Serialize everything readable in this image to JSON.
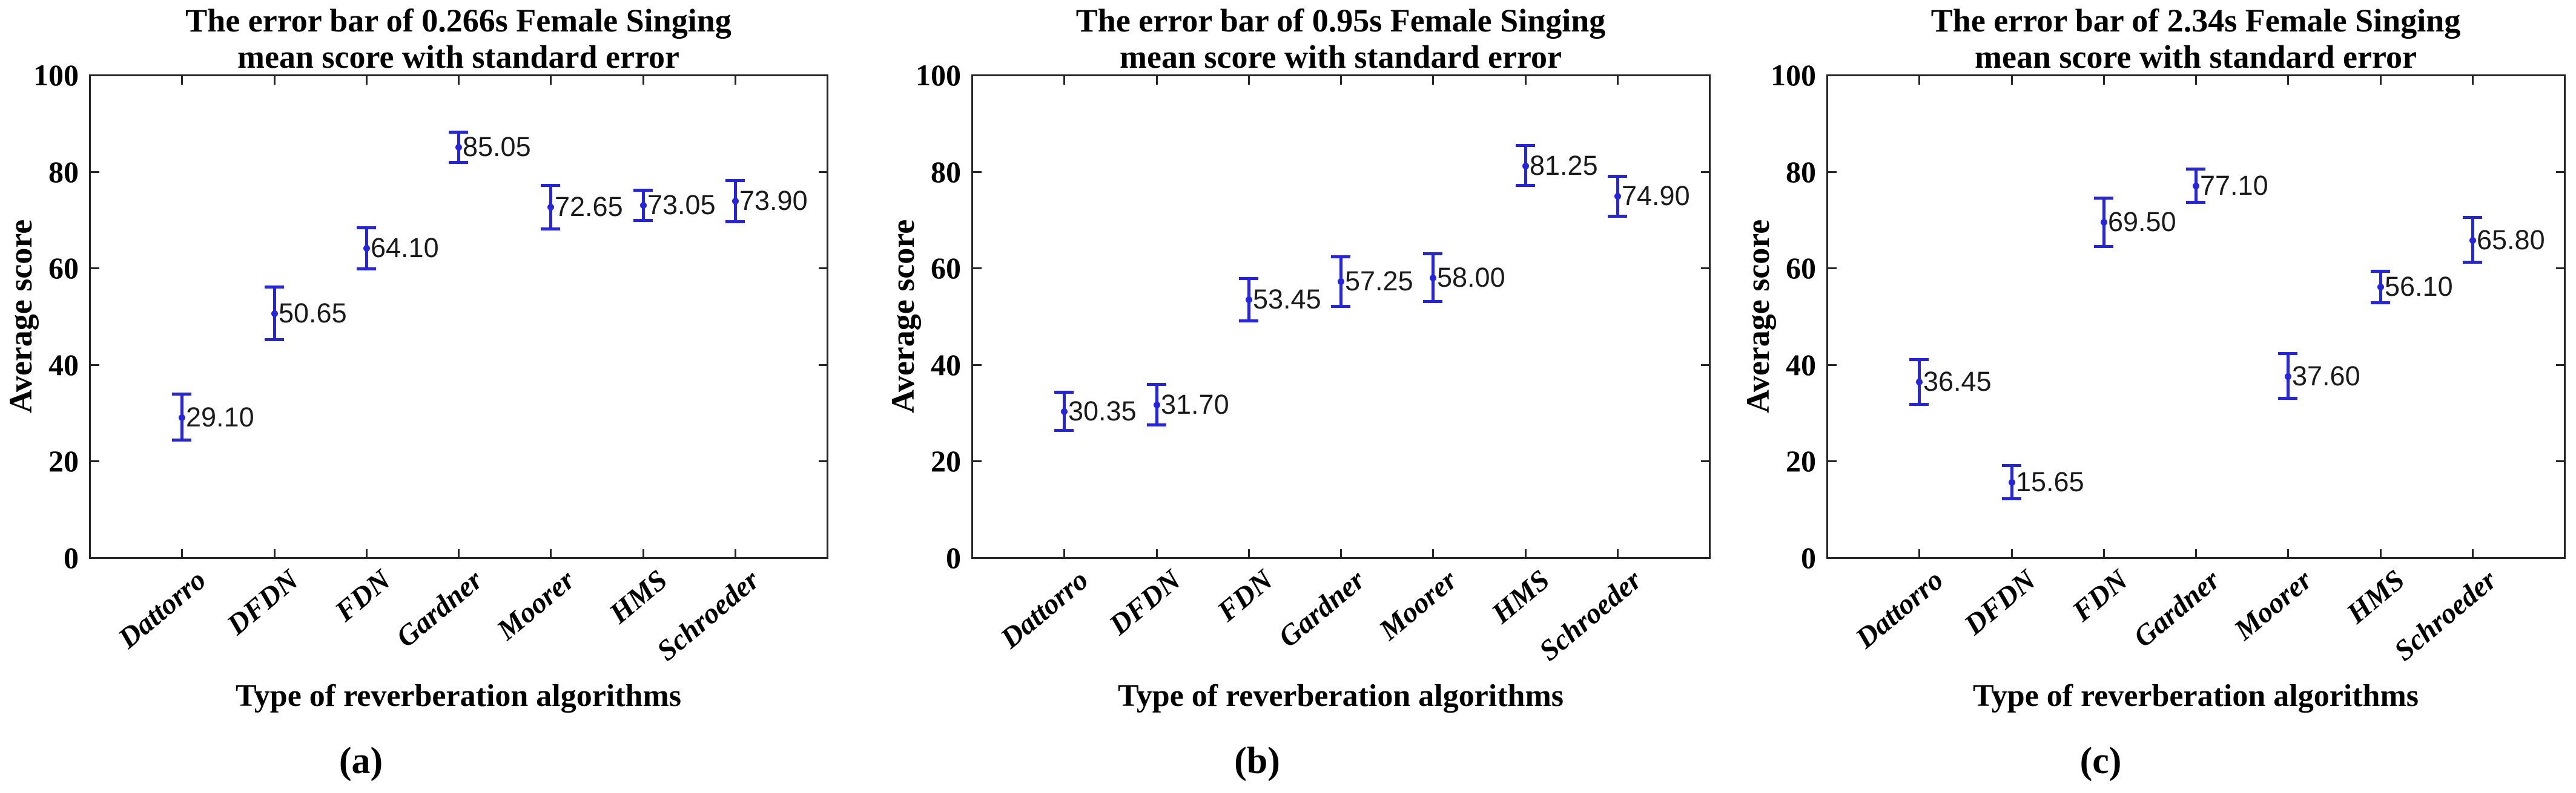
{
  "figure": {
    "ylabel": "Average score",
    "xlabel": "Type of reverberation algorithms",
    "categories": [
      "Dattorro",
      "DFDN",
      "FDN",
      "Gardner",
      "Moorer",
      "HMS",
      "Schroeder"
    ],
    "yticks": [
      "0",
      "20",
      "40",
      "60",
      "80",
      "100"
    ]
  },
  "colors": {
    "errorbar_blue": "#2525e0",
    "axis": "#262626",
    "value_label_text": "#1a1a1a"
  },
  "chart_data": [
    {
      "type": "errorbar",
      "title_line1": "The error bar of 0.266s Female Singing",
      "title_line2": "mean score with standard error",
      "caption": "(a)",
      "xlabel": "Type of reverberation algorithms",
      "ylabel": "Average score",
      "categories": [
        "Dattorro",
        "DFDN",
        "FDN",
        "Gardner",
        "Moorer",
        "HMS",
        "Schroeder"
      ],
      "values": [
        29.1,
        50.65,
        64.1,
        85.05,
        72.65,
        73.05,
        73.9
      ],
      "errors": [
        4.8,
        5.5,
        4.3,
        3.2,
        4.6,
        3.2,
        4.3
      ],
      "labels": [
        "29.10",
        "50.65",
        "64.10",
        "85.05",
        "72.65",
        "73.05",
        "73.90"
      ],
      "ylim": [
        0,
        100
      ],
      "yticks": [
        "0",
        "20",
        "40",
        "60",
        "80",
        "100"
      ],
      "legend": "none",
      "grid": "off"
    },
    {
      "type": "errorbar",
      "title_line1": "The error bar of 0.95s Female Singing",
      "title_line2": "mean score with standard error",
      "caption": "(b)",
      "xlabel": "Type of reverberation algorithms",
      "ylabel": "Average score",
      "categories": [
        "Dattorro",
        "DFDN",
        "FDN",
        "Gardner",
        "Moorer",
        "HMS",
        "Schroeder"
      ],
      "values": [
        30.35,
        31.7,
        53.45,
        57.25,
        58.0,
        81.25,
        74.9
      ],
      "errors": [
        4.0,
        4.3,
        4.4,
        5.2,
        5.0,
        4.2,
        4.2
      ],
      "labels": [
        "30.35",
        "31.70",
        "53.45",
        "57.25",
        "58.00",
        "81.25",
        "74.90"
      ],
      "ylim": [
        0,
        100
      ],
      "yticks": [
        "0",
        "20",
        "40",
        "60",
        "80",
        "100"
      ],
      "legend": "none",
      "grid": "off"
    },
    {
      "type": "errorbar",
      "title_line1": "The error bar of 2.34s Female Singing",
      "title_line2": "mean score with standard error",
      "caption": "(c)",
      "xlabel": "Type of reverberation algorithms",
      "ylabel": "Average score",
      "categories": [
        "Dattorro",
        "DFDN",
        "FDN",
        "Gardner",
        "Moorer",
        "HMS",
        "Schroeder"
      ],
      "values": [
        36.45,
        15.65,
        69.5,
        77.1,
        37.6,
        56.1,
        65.8
      ],
      "errors": [
        4.7,
        3.5,
        5.1,
        3.5,
        4.7,
        3.3,
        4.7
      ],
      "labels": [
        "36.45",
        "15.65",
        "69.50",
        "77.10",
        "37.60",
        "56.10",
        "65.80"
      ],
      "ylim": [
        0,
        100
      ],
      "yticks": [
        "0",
        "20",
        "40",
        "60",
        "80",
        "100"
      ],
      "legend": "none",
      "grid": "off"
    }
  ]
}
